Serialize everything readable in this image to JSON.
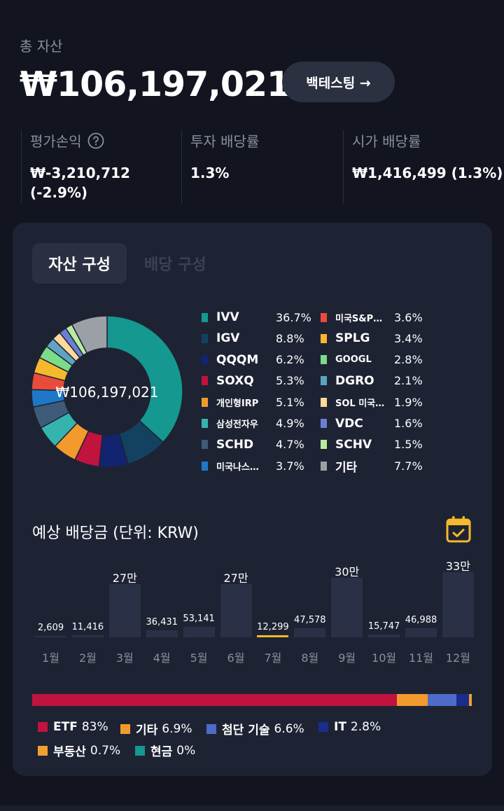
{
  "header": {
    "total_label": "총 자산",
    "total_value": "₩106,197,021",
    "backtest_label": "백테스팅 →"
  },
  "stats": [
    {
      "label": "평가손익",
      "value_line1": "₩-3,210,712",
      "value_line2": "(-2.9%)"
    },
    {
      "label": "투자 배당률",
      "value_line1": "1.3%",
      "value_line2": ""
    },
    {
      "label": "시가 배당률",
      "value_line1": "₩1,416,499 (1.3%)",
      "value_line2": ""
    }
  ],
  "tabs": {
    "asset": "자산 구성",
    "dividend": "배당 구성"
  },
  "donut": {
    "center": "₩106,197,021",
    "segments": [
      {
        "name": "IVV",
        "pct": "36.7%",
        "value": 36.7,
        "color": "#14988f"
      },
      {
        "name": "IGV",
        "pct": "8.8%",
        "value": 8.8,
        "color": "#134260"
      },
      {
        "name": "QQQM",
        "pct": "6.2%",
        "value": 6.2,
        "color": "#122470"
      },
      {
        "name": "SOXQ",
        "pct": "5.3%",
        "value": 5.3,
        "color": "#c1133e"
      },
      {
        "name": "개인형IRP",
        "pct": "5.1%",
        "value": 5.1,
        "color": "#f29a2e"
      },
      {
        "name": "삼성전자우",
        "pct": "4.9%",
        "value": 4.9,
        "color": "#35b3ad"
      },
      {
        "name": "SCHD",
        "pct": "4.7%",
        "value": 4.7,
        "color": "#3e5b79"
      },
      {
        "name": "미국나스…",
        "pct": "3.7%",
        "value": 3.7,
        "color": "#1e78c7"
      },
      {
        "name": "미국S&P…",
        "pct": "3.6%",
        "value": 3.6,
        "color": "#e84b3c"
      },
      {
        "name": "SPLG",
        "pct": "3.4%",
        "value": 3.4,
        "color": "#f5b92d"
      },
      {
        "name": "GOOGL",
        "pct": "2.8%",
        "value": 2.8,
        "color": "#7bdc8a"
      },
      {
        "name": "DGRO",
        "pct": "2.1%",
        "value": 2.1,
        "color": "#5fa3c2"
      },
      {
        "name": "SOL 미국…",
        "pct": "1.9%",
        "value": 1.9,
        "color": "#ffd89a"
      },
      {
        "name": "VDC",
        "pct": "1.6%",
        "value": 1.6,
        "color": "#6b7fd6"
      },
      {
        "name": "SCHV",
        "pct": "1.5%",
        "value": 1.5,
        "color": "#b8ec9c"
      },
      {
        "name": "기타",
        "pct": "7.7%",
        "value": 7.7,
        "color": "#9aa0a6"
      }
    ]
  },
  "dividend": {
    "title": "예상 배당금 (단위: KRW)",
    "months": [
      {
        "month": "1월",
        "label": "2,609",
        "value": 2609
      },
      {
        "month": "2월",
        "label": "11,416",
        "value": 11416
      },
      {
        "month": "3월",
        "label": "27만",
        "value": 270000
      },
      {
        "month": "4월",
        "label": "36,431",
        "value": 36431
      },
      {
        "month": "5월",
        "label": "53,141",
        "value": 53141
      },
      {
        "month": "6월",
        "label": "27만",
        "value": 270000
      },
      {
        "month": "7월",
        "label": "12,299",
        "value": 12299
      },
      {
        "month": "8월",
        "label": "47,578",
        "value": 47578
      },
      {
        "month": "9월",
        "label": "30만",
        "value": 300000
      },
      {
        "month": "10월",
        "label": "15,747",
        "value": 15747
      },
      {
        "month": "11월",
        "label": "46,988",
        "value": 46988
      },
      {
        "month": "12월",
        "label": "33만",
        "value": 330000
      }
    ],
    "highlight_month_index": 6,
    "bar_color": "#2a3146",
    "highlight_color": "#f5b92d"
  },
  "sectors": [
    {
      "name": "ETF",
      "pct": "83%",
      "value": 83,
      "color": "#c1133e"
    },
    {
      "name": "기타",
      "pct": "6.9%",
      "value": 6.9,
      "color": "#f29a2e"
    },
    {
      "name": "첨단 기술",
      "pct": "6.6%",
      "value": 6.6,
      "color": "#4e6bc8"
    },
    {
      "name": "IT",
      "pct": "2.8%",
      "value": 2.8,
      "color": "#1a2d8c"
    },
    {
      "name": "부동산",
      "pct": "0.7%",
      "value": 0.7,
      "color": "#f0a030"
    },
    {
      "name": "현금",
      "pct": "0%",
      "value": 0,
      "color": "#14988f"
    }
  ]
}
